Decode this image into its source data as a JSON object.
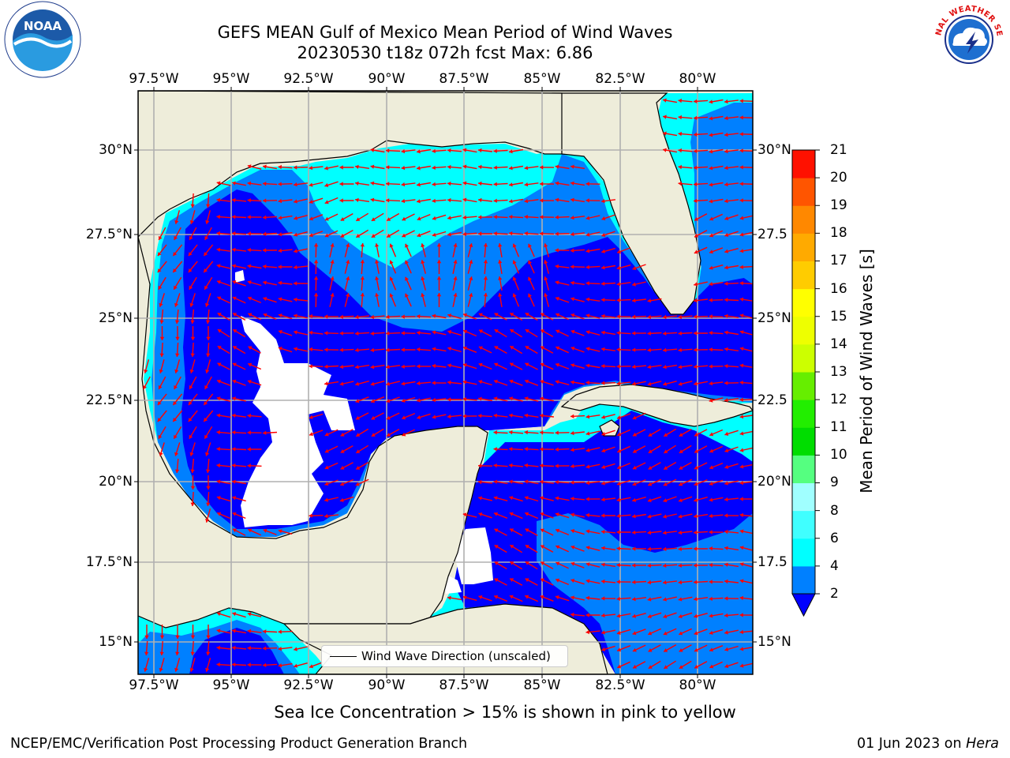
{
  "title": {
    "line1": "GEFS MEAN Gulf of Mexico Mean Period of Wind Waves",
    "line2": "20230530 t18z 072h fcst   Max: 6.86"
  },
  "axes": {
    "lon_labels": [
      "97.5°W",
      "95°W",
      "92.5°W",
      "90°W",
      "87.5°W",
      "85°W",
      "82.5°W",
      "80°W"
    ],
    "lat_labels_left": [
      "30°N",
      "27.5°N",
      "25°N",
      "22.5°N",
      "20°N",
      "17.5°N",
      "15°N"
    ],
    "lat_labels_right": [
      "30°N",
      "27.5",
      "25°N",
      "22.5",
      "20°N",
      "17.5",
      "15°N"
    ]
  },
  "map_data": {
    "region": "Gulf of Mexico",
    "lon_range": [
      -98,
      -78.5
    ],
    "lat_range": [
      14,
      31.7
    ],
    "grid": true,
    "colors": {
      "land": "#eeedda",
      "no_data": "#ffffff",
      "arrows": "#ff0000",
      "coastline": "#000000",
      "gridlines": "#b0b0b0"
    }
  },
  "colorbar": {
    "label": "Mean Period of Wind Waves [s]",
    "tick_labels": [
      "21",
      "20",
      "19",
      "18",
      "17",
      "16",
      "15",
      "14",
      "13",
      "12",
      "11",
      "10",
      "9",
      "8",
      "6",
      "4",
      "2"
    ],
    "extend": "min",
    "under_color": "#0000ff",
    "bands": [
      {
        "from": 2,
        "to": 4,
        "color": "#0080ff"
      },
      {
        "from": 4,
        "to": 6,
        "color": "#00ffff"
      },
      {
        "from": 6,
        "to": 8,
        "color": "#40ffff"
      },
      {
        "from": 8,
        "to": 9,
        "color": "#a0ffff"
      },
      {
        "from": 9,
        "to": 10,
        "color": "#55ff80"
      },
      {
        "from": 10,
        "to": 11,
        "color": "#00dd00"
      },
      {
        "from": 11,
        "to": 12,
        "color": "#22ee00"
      },
      {
        "from": 12,
        "to": 13,
        "color": "#66ee00"
      },
      {
        "from": 13,
        "to": 14,
        "color": "#ccff00"
      },
      {
        "from": 14,
        "to": 15,
        "color": "#eeff00"
      },
      {
        "from": 15,
        "to": 16,
        "color": "#ffff00"
      },
      {
        "from": 16,
        "to": 17,
        "color": "#ffcc00"
      },
      {
        "from": 17,
        "to": 18,
        "color": "#ffaa00"
      },
      {
        "from": 18,
        "to": 19,
        "color": "#ff8800"
      },
      {
        "from": 19,
        "to": 20,
        "color": "#ff5500"
      },
      {
        "from": 20,
        "to": 21,
        "color": "#ff1100"
      }
    ]
  },
  "legend": {
    "label": "Wind Wave Direction (unscaled)"
  },
  "caption": "Sea Ice Concentration > 15% is shown in pink to yellow",
  "footer": {
    "left": "NCEP/EMC/Verification Post Processing Product Generation Branch",
    "right_date": "01 Jun 2023 on ",
    "right_host": "Hera"
  },
  "logos": {
    "noaa": "NOAA",
    "nws": "NATIONAL WEATHER SERVICE"
  }
}
